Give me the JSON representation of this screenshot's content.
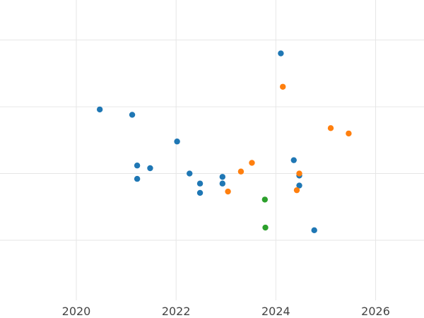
{
  "chart_data": {
    "type": "scatter",
    "title": "",
    "xlabel": "",
    "ylabel": "",
    "xlim": [
      2018.47,
      2026.97
    ],
    "ylim": [
      0.0,
      4.5
    ],
    "x_ticks": [
      2020,
      2022,
      2024,
      2026
    ],
    "x_tick_labels": [
      "2020",
      "2022",
      "2024",
      "2026"
    ],
    "y_gridlines": [
      0.9,
      1.9,
      2.9,
      3.9
    ],
    "grid": true,
    "legend": "none",
    "series": [
      {
        "color": "#1f77b4",
        "points": [
          {
            "x": 2020.47,
            "y": 2.86
          },
          {
            "x": 2021.12,
            "y": 2.78
          },
          {
            "x": 2021.22,
            "y": 2.02
          },
          {
            "x": 2021.22,
            "y": 1.82
          },
          {
            "x": 2021.48,
            "y": 1.98
          },
          {
            "x": 2022.02,
            "y": 2.38
          },
          {
            "x": 2022.27,
            "y": 1.9
          },
          {
            "x": 2022.48,
            "y": 1.75
          },
          {
            "x": 2022.48,
            "y": 1.61
          },
          {
            "x": 2022.93,
            "y": 1.85
          },
          {
            "x": 2022.93,
            "y": 1.75
          },
          {
            "x": 2024.1,
            "y": 3.7
          },
          {
            "x": 2024.36,
            "y": 2.1
          },
          {
            "x": 2024.47,
            "y": 1.87
          },
          {
            "x": 2024.47,
            "y": 1.72
          },
          {
            "x": 2024.77,
            "y": 1.05
          }
        ]
      },
      {
        "color": "#ff7f0e",
        "points": [
          {
            "x": 2023.04,
            "y": 1.63
          },
          {
            "x": 2023.3,
            "y": 1.93
          },
          {
            "x": 2023.52,
            "y": 2.06
          },
          {
            "x": 2024.14,
            "y": 3.2
          },
          {
            "x": 2024.42,
            "y": 1.65
          },
          {
            "x": 2024.47,
            "y": 1.9
          },
          {
            "x": 2025.1,
            "y": 2.58
          },
          {
            "x": 2025.46,
            "y": 2.5
          }
        ]
      },
      {
        "color": "#2ca02c",
        "points": [
          {
            "x": 2023.78,
            "y": 1.51
          },
          {
            "x": 2023.79,
            "y": 1.09
          }
        ]
      }
    ]
  }
}
